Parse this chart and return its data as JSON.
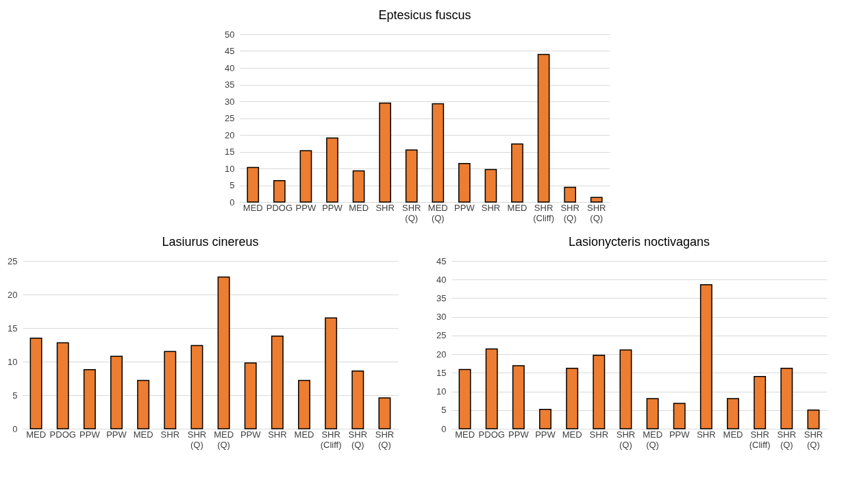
{
  "chart_data": [
    {
      "type": "bar",
      "title": "Eptesicus fuscus",
      "categories": [
        "MED",
        "PDOG",
        "PPW",
        "PPW",
        "MED",
        "SHR",
        "SHR (Q)",
        "MED (Q)",
        "PPW",
        "SHR",
        "MED",
        "SHR (Cliff)",
        "SHR (Q)",
        "SHR (Q)"
      ],
      "values": [
        10.3,
        6.4,
        15.3,
        19.1,
        9.3,
        29.5,
        15.5,
        29.3,
        11.5,
        9.7,
        17.3,
        44,
        4.4,
        1.4
      ],
      "color": "#ed7d31",
      "ylim": [
        0,
        50
      ],
      "yticks": [
        0,
        5,
        10,
        15,
        20,
        25,
        30,
        35,
        40,
        45,
        50
      ],
      "grid": "y"
    },
    {
      "type": "bar",
      "title": "Lasiurus cinereus",
      "categories": [
        "MED",
        "PDOG",
        "PPW",
        "PPW",
        "MED",
        "SHR",
        "SHR (Q)",
        "MED (Q)",
        "PPW",
        "SHR",
        "MED",
        "SHR (Cliff)",
        "SHR (Q)",
        "SHR (Q)"
      ],
      "values": [
        13.5,
        12.8,
        8.8,
        10.8,
        7.2,
        11.5,
        12.4,
        22.6,
        9.8,
        13.8,
        7.2,
        16.5,
        8.6,
        4.6
      ],
      "color": "#ed7d31",
      "ylim": [
        0,
        25
      ],
      "yticks": [
        0,
        5,
        10,
        15,
        20,
        25
      ],
      "grid": "y"
    },
    {
      "type": "bar",
      "title": "Lasionycteris noctivagans",
      "categories": [
        "MED",
        "PDOG",
        "PPW",
        "PPW",
        "MED",
        "SHR",
        "SHR (Q)",
        "MED (Q)",
        "PPW",
        "SHR",
        "MED",
        "SHR (Cliff)",
        "SHR (Q)",
        "SHR (Q)"
      ],
      "values": [
        15.9,
        21.4,
        16.9,
        5.2,
        16.2,
        19.7,
        21.1,
        8.1,
        6.8,
        38.6,
        8.1,
        14.0,
        16.2,
        5.0
      ],
      "color": "#ed7d31",
      "ylim": [
        0,
        45
      ],
      "yticks": [
        0,
        5,
        10,
        15,
        20,
        25,
        30,
        35,
        40,
        45
      ],
      "grid": "y"
    }
  ]
}
